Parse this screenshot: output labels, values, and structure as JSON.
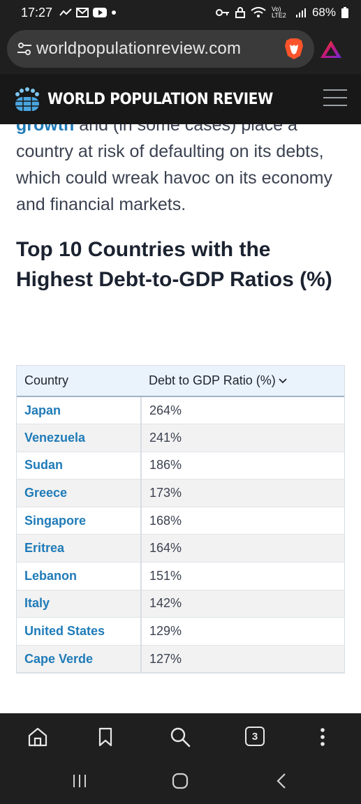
{
  "status_bar": {
    "time": "17:27",
    "battery": "68%",
    "network": "Vo) LTE2"
  },
  "browser": {
    "url": "worldpopulationreview.com",
    "tab_count": "3"
  },
  "site": {
    "title": "WORLD POPULATION REVIEW"
  },
  "article": {
    "intro_link": "growth",
    "intro_text": " and (in some cases) place a country at risk of defaulting on its debts, which could wreak havoc on its economy and financial markets.",
    "heading": "Top 10 Countries with the Highest Debt-to-GDP Ratios (%)"
  },
  "table": {
    "headers": [
      "Country",
      "Debt to GDP Ratio (%)"
    ],
    "rows": [
      {
        "country": "Japan",
        "ratio": "264%"
      },
      {
        "country": "Venezuela",
        "ratio": "241%"
      },
      {
        "country": "Sudan",
        "ratio": "186%"
      },
      {
        "country": "Greece",
        "ratio": "173%"
      },
      {
        "country": "Singapore",
        "ratio": "168%"
      },
      {
        "country": "Eritrea",
        "ratio": "164%"
      },
      {
        "country": "Lebanon",
        "ratio": "151%"
      },
      {
        "country": "Italy",
        "ratio": "142%"
      },
      {
        "country": "United States",
        "ratio": "129%"
      },
      {
        "country": "Cape Verde",
        "ratio": "127%"
      }
    ]
  },
  "colors": {
    "link": "#1f7bb8",
    "header_bg": "#181818",
    "table_header_bg": "#eaf3fb"
  }
}
